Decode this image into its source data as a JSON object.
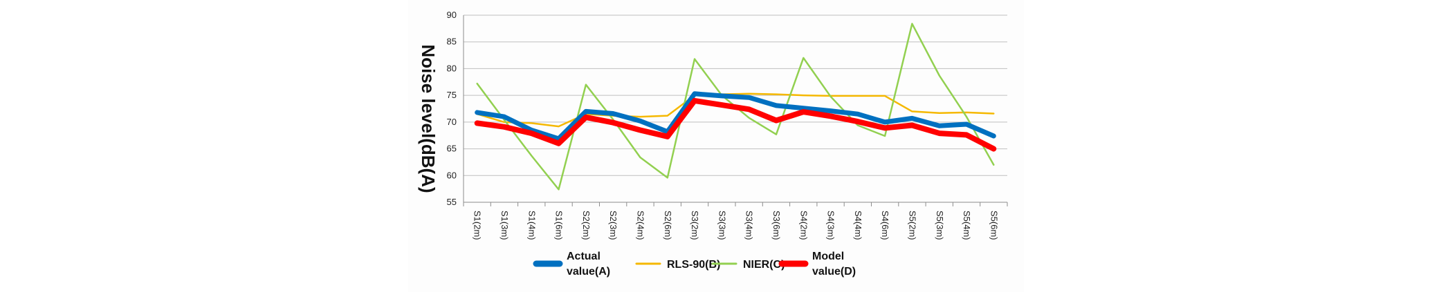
{
  "chart_data": {
    "type": "line",
    "ylabel": "Noise level(dB(A)",
    "xlabel": "",
    "ylim": [
      55,
      90
    ],
    "yticks": [
      55,
      60,
      65,
      70,
      75,
      80,
      85,
      90
    ],
    "grid": true,
    "legend_position": "bottom",
    "categories": [
      "S1(2m)",
      "S1(3m)",
      "S1(4m)",
      "S1(6m)",
      "S2(2m)",
      "S2(3m)",
      "S2(4m)",
      "S2(6m)",
      "S3(2m)",
      "S3(3m)",
      "S3(4m)",
      "S3(6m)",
      "S4(2m)",
      "S4(3m)",
      "S4(4m)",
      "S4(6m)",
      "S5(2m)",
      "S5(3m)",
      "S5(4m)",
      "S5(6m)"
    ],
    "series": [
      {
        "name": "RLS-90(B)",
        "color": "#f5b800",
        "width": 2.5,
        "values": [
          71.5,
          70.0,
          69.8,
          69.2,
          71.5,
          71.2,
          71.0,
          71.2,
          75.0,
          75.2,
          75.3,
          75.2,
          75.0,
          74.9,
          74.9,
          74.9,
          72.0,
          71.7,
          71.8,
          71.6
        ]
      },
      {
        "name": "NIER(C)",
        "color": "#92d050",
        "width": 2.5,
        "values": [
          77.2,
          70.4,
          63.7,
          57.4,
          77.0,
          70.5,
          63.4,
          59.6,
          81.8,
          75.0,
          70.8,
          67.7,
          82.0,
          74.8,
          69.4,
          67.4,
          88.4,
          78.7,
          71.0,
          62.0
        ]
      },
      {
        "name": "Actual value(A)",
        "color": "#0070c0",
        "width": 7,
        "values": [
          71.8,
          71.0,
          68.5,
          66.9,
          72.0,
          71.6,
          70.2,
          68.2,
          75.3,
          74.9,
          74.6,
          73.1,
          72.6,
          72.1,
          71.5,
          70.0,
          70.7,
          69.3,
          69.6,
          67.4
        ]
      },
      {
        "name": "Model value(D)",
        "color": "#ff0000",
        "width": 8,
        "values": [
          69.8,
          69.1,
          67.9,
          66.0,
          70.9,
          69.9,
          68.5,
          67.3,
          74.0,
          73.2,
          72.4,
          70.3,
          71.9,
          71.1,
          70.1,
          68.9,
          69.4,
          67.9,
          67.6,
          65.0
        ]
      }
    ],
    "legend": [
      {
        "label_lines": [
          "Actual",
          "value(A)"
        ],
        "color": "#0070c0",
        "thick": true
      },
      {
        "label_lines": [
          "RLS-90(B)"
        ],
        "color": "#f5b800",
        "thick": false
      },
      {
        "label_lines": [
          "NIER(C)"
        ],
        "color": "#92d050",
        "thick": false
      },
      {
        "label_lines": [
          "Model",
          "value(D)"
        ],
        "color": "#ff0000",
        "thick": true
      }
    ]
  }
}
